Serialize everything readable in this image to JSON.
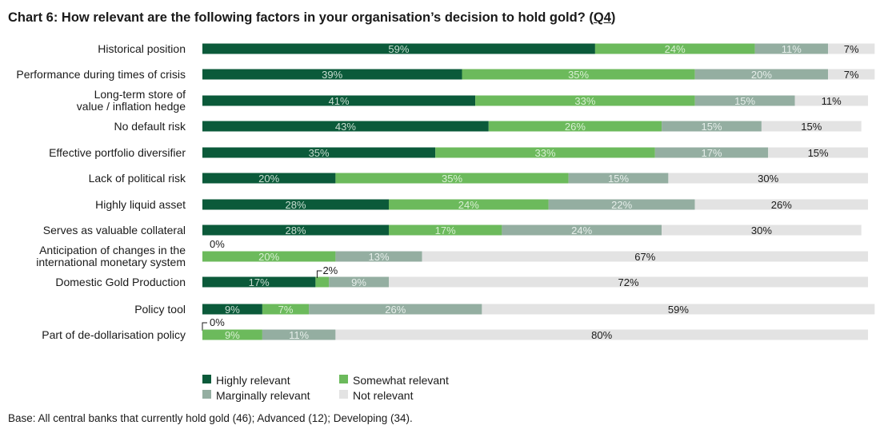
{
  "title": {
    "main": "Chart 6: How relevant are the following factors in your organisation’s decision to hold gold? (",
    "question": "Q4",
    "close": ")"
  },
  "footnote": "Base: All central banks that currently hold gold (46); Advanced (12); Developing (34).",
  "colors": {
    "highly": "#0b5a3a",
    "somewhat": "#6cba5c",
    "marginally": "#94aea1",
    "not": "#e3e3e3"
  },
  "chart_data": {
    "type": "bar",
    "orientation": "horizontal",
    "stacked": true,
    "legend_position": "bottom",
    "grid": false,
    "categories": [
      "Historical position",
      "Performance during times of crisis",
      "Long-term store of value / inflation hedge",
      "No default risk",
      "Effective portfolio diversifier",
      "Lack of political risk",
      "Highly liquid asset",
      "Serves as valuable collateral",
      "Anticipation of changes in the international monetary system",
      "Domestic Gold Production",
      "Policy tool",
      "Part of de-dollarisation policy"
    ],
    "category_lines": [
      [
        "Historical position"
      ],
      [
        "Performance during times of crisis"
      ],
      [
        "Long-term store of",
        "value / inflation hedge"
      ],
      [
        "No default risk"
      ],
      [
        "Effective portfolio diversifier"
      ],
      [
        "Lack of political risk"
      ],
      [
        "Highly liquid asset"
      ],
      [
        "Serves as valuable collateral"
      ],
      [
        "Anticipation of changes in the",
        "international monetary system"
      ],
      [
        "Domestic Gold Production"
      ],
      [
        "Policy tool"
      ],
      [
        "Part of de-dollarisation policy"
      ]
    ],
    "series": [
      {
        "name": "Highly relevant",
        "key": "highly",
        "values": [
          59,
          39,
          41,
          43,
          35,
          20,
          28,
          28,
          0,
          17,
          9,
          0
        ]
      },
      {
        "name": "Somewhat relevant",
        "key": "somewhat",
        "values": [
          24,
          35,
          33,
          26,
          33,
          35,
          24,
          17,
          20,
          2,
          7,
          9
        ]
      },
      {
        "name": "Marginally relevant",
        "key": "marginally",
        "values": [
          11,
          20,
          15,
          15,
          17,
          15,
          22,
          24,
          13,
          9,
          26,
          11
        ]
      },
      {
        "name": "Not relevant",
        "key": "not",
        "values": [
          7,
          7,
          11,
          15,
          15,
          30,
          26,
          30,
          67,
          72,
          59,
          80
        ]
      }
    ],
    "data_labels": [
      [
        "59%",
        "24%",
        "11%",
        "7%"
      ],
      [
        "39%",
        "35%",
        "20%",
        "7%"
      ],
      [
        "41%",
        "33%",
        "15%",
        "11%"
      ],
      [
        "43%",
        "26%",
        "15%",
        "15%"
      ],
      [
        "35%",
        "33%",
        "17%",
        "15%"
      ],
      [
        "20%",
        "35%",
        "15%",
        "30%"
      ],
      [
        "28%",
        "24%",
        "22%",
        "26%"
      ],
      [
        "28%",
        "17%",
        "24%",
        "30%"
      ],
      [
        "0%",
        "20%",
        "13%",
        "67%"
      ],
      [
        "17%",
        "2%",
        "9%",
        "72%"
      ],
      [
        "9%",
        "7%",
        "26%",
        "59%"
      ],
      [
        "0%",
        "9%",
        "11%",
        "80%"
      ]
    ],
    "xlim": [
      0,
      100
    ],
    "unit": "%"
  },
  "legend": [
    {
      "label": "Highly relevant",
      "key": "highly"
    },
    {
      "label": "Somewhat relevant",
      "key": "somewhat"
    },
    {
      "label": "Marginally relevant",
      "key": "marginally"
    },
    {
      "label": "Not relevant",
      "key": "not"
    }
  ]
}
